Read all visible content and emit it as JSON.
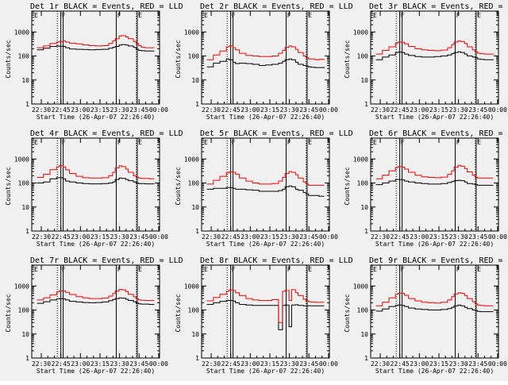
{
  "colors": {
    "background": "#ffffff",
    "panel": "#f0f0f0",
    "events": "#000000",
    "lld": "#ff0000"
  },
  "chart_data": {
    "type": "line",
    "title_suffix": "BLACK = Events, RED = LLD",
    "xlabel": "Start Time (26-Apr-07 22:26:40)",
    "ylabel": "Counts/sec",
    "xlim": [
      -4,
      94
    ],
    "xunit": "minutes after 22:26:40",
    "xticks": [
      3.33,
      18.33,
      33.33,
      48.33,
      63.33,
      78.33,
      93.33
    ],
    "xtick_labels": [
      "22:30",
      "22:45",
      "23:00",
      "23:15",
      "23:30",
      "23:45",
      "00:00"
    ],
    "yscale": "log",
    "ylim": [
      1,
      10000
    ],
    "yticks": [
      1,
      10,
      100,
      1000,
      10000
    ],
    "ytick_labels": [
      "1",
      "10",
      "100",
      "1000",
      "10000"
    ],
    "markers": {
      "dotted_x": [
        15.6,
        76.2
      ],
      "solid_x": [
        18.3,
        20.1,
        60.8,
        76.9
      ],
      "flags": [
        {
          "x": 18.4,
          "label": "F"
        },
        {
          "x": 60.9,
          "label": "F"
        },
        {
          "x": 77.0,
          "label": "E"
        },
        {
          "x": -2.8,
          "label": "E"
        }
      ]
    },
    "times": [
      0,
      5,
      10,
      15,
      17,
      20,
      22,
      25,
      30,
      35,
      40,
      45,
      50,
      55,
      58,
      60,
      63,
      65,
      68,
      70,
      74,
      76,
      78,
      80,
      83,
      86,
      90
    ],
    "panels": [
      {
        "title": "Det 1r",
        "ytick_labels": [
          "1",
          "10",
          "100",
          "1000",
          "10000"
        ],
        "events": [
          180,
          210,
          250,
          260,
          255,
          250,
          220,
          195,
          190,
          185,
          180,
          185,
          190,
          210,
          230,
          250,
          285,
          300,
          285,
          260,
          230,
          190,
          170,
          165,
          160,
          160,
          160
        ],
        "lld": [
          220,
          260,
          330,
          380,
          400,
          420,
          380,
          340,
          320,
          290,
          270,
          260,
          270,
          330,
          420,
          520,
          680,
          700,
          620,
          520,
          400,
          330,
          270,
          230,
          220,
          220,
          220
        ]
      },
      {
        "title": "Det 2r",
        "ytick_labels": [
          "1",
          "10",
          "100",
          "1000"
        ],
        "events": [
          35,
          50,
          60,
          75,
          70,
          55,
          48,
          50,
          48,
          45,
          40,
          42,
          45,
          50,
          60,
          70,
          75,
          70,
          55,
          45,
          40,
          38,
          35,
          34,
          33,
          33,
          35
        ],
        "lld": [
          70,
          110,
          160,
          240,
          260,
          220,
          180,
          130,
          105,
          100,
          95,
          95,
          100,
          130,
          170,
          230,
          260,
          240,
          190,
          140,
          100,
          85,
          75,
          75,
          70,
          72,
          75
        ]
      },
      {
        "title": "Det 3r",
        "ytick_labels": [
          "1",
          "10",
          "100",
          "1000"
        ],
        "events": [
          70,
          90,
          110,
          140,
          145,
          140,
          120,
          105,
          95,
          90,
          90,
          95,
          100,
          110,
          125,
          140,
          150,
          140,
          120,
          100,
          90,
          85,
          75,
          72,
          70,
          70,
          72
        ],
        "lld": [
          120,
          170,
          240,
          340,
          380,
          370,
          320,
          250,
          200,
          180,
          170,
          165,
          175,
          220,
          300,
          380,
          420,
          400,
          330,
          240,
          180,
          150,
          130,
          125,
          120,
          120,
          125
        ]
      },
      {
        "title": "Det 4r",
        "ytick_labels": [
          "1",
          "10",
          "100",
          "1000"
        ],
        "events": [
          100,
          110,
          150,
          165,
          165,
          150,
          120,
          110,
          100,
          95,
          92,
          92,
          95,
          100,
          110,
          140,
          160,
          155,
          140,
          125,
          110,
          100,
          95,
          95,
          92,
          92,
          92
        ],
        "lld": [
          170,
          230,
          360,
          470,
          520,
          470,
          350,
          250,
          190,
          165,
          160,
          160,
          165,
          200,
          280,
          420,
          520,
          480,
          380,
          280,
          200,
          170,
          160,
          155,
          155,
          150,
          150
        ]
      },
      {
        "title": "Det 5r",
        "ytick_labels": [
          "1",
          "10",
          "100",
          "1000"
        ],
        "events": [
          55,
          60,
          60,
          65,
          65,
          60,
          55,
          55,
          52,
          50,
          45,
          45,
          45,
          48,
          55,
          70,
          75,
          70,
          55,
          50,
          40,
          35,
          30,
          30,
          30,
          28,
          28
        ],
        "lld": [
          90,
          130,
          190,
          260,
          290,
          280,
          230,
          160,
          120,
          100,
          90,
          90,
          95,
          120,
          170,
          250,
          300,
          280,
          220,
          160,
          110,
          90,
          80,
          80,
          80,
          80,
          80
        ]
      },
      {
        "title": "Det 6r",
        "ytick_labels": [
          "1",
          "10",
          "100",
          "1000"
        ],
        "events": [
          85,
          100,
          120,
          140,
          140,
          135,
          120,
          110,
          100,
          95,
          90,
          90,
          95,
          105,
          115,
          125,
          130,
          125,
          110,
          95,
          90,
          85,
          80,
          80,
          80,
          80,
          80
        ],
        "lld": [
          150,
          210,
          320,
          440,
          480,
          460,
          380,
          280,
          210,
          180,
          170,
          165,
          175,
          230,
          320,
          460,
          540,
          500,
          400,
          290,
          210,
          170,
          160,
          160,
          160,
          160,
          160
        ]
      },
      {
        "title": "Det 7r",
        "ytick_labels": [
          "1",
          "10",
          "100",
          "1000",
          "10000"
        ],
        "events": [
          190,
          220,
          260,
          290,
          295,
          290,
          260,
          230,
          215,
          205,
          200,
          205,
          215,
          245,
          275,
          300,
          320,
          310,
          280,
          250,
          220,
          195,
          180,
          175,
          175,
          170,
          170
        ],
        "lld": [
          260,
          320,
          420,
          560,
          620,
          620,
          540,
          440,
          360,
          320,
          300,
          300,
          310,
          380,
          480,
          620,
          720,
          690,
          580,
          450,
          350,
          290,
          260,
          255,
          250,
          250,
          250
        ]
      },
      {
        "title": "Det 8r",
        "ytick_labels": [
          "1",
          "10",
          "100",
          "1000"
        ],
        "events": [
          170,
          200,
          230,
          250,
          250,
          235,
          200,
          170,
          160,
          155,
          155,
          155,
          155,
          15,
          155,
          160,
          20,
          160,
          165,
          155,
          150,
          150,
          150,
          150,
          148,
          148,
          148
        ],
        "lld": [
          240,
          330,
          450,
          600,
          680,
          650,
          520,
          400,
          300,
          260,
          250,
          250,
          270,
          30,
          600,
          650,
          250,
          700,
          520,
          400,
          280,
          240,
          220,
          215,
          210,
          210,
          210
        ]
      },
      {
        "title": "Det 9r",
        "ytick_labels": [
          "1",
          "10",
          "100",
          "1000"
        ],
        "events": [
          90,
          110,
          140,
          155,
          160,
          155,
          140,
          120,
          110,
          105,
          100,
          100,
          105,
          115,
          130,
          150,
          160,
          150,
          130,
          115,
          100,
          95,
          88,
          85,
          85,
          85,
          85
        ],
        "lld": [
          150,
          210,
          320,
          460,
          500,
          490,
          410,
          300,
          240,
          210,
          200,
          195,
          210,
          260,
          360,
          470,
          520,
          490,
          400,
          300,
          220,
          180,
          160,
          155,
          150,
          150,
          150
        ]
      }
    ]
  }
}
